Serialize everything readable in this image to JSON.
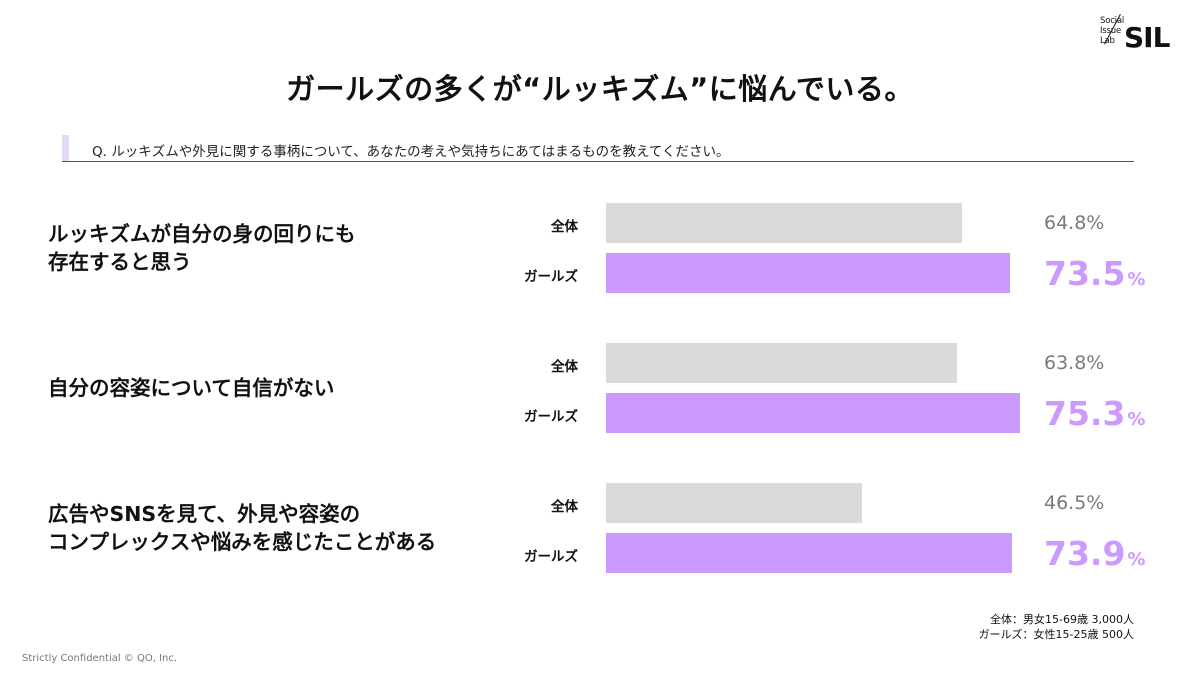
{
  "brand": {
    "line1": "Social",
    "line2": "Issue",
    "line3": "Lab",
    "mark": "SIL"
  },
  "title": "ガールズの多くが“ルッキズム”に悩んでいる。",
  "question": "Q. ルッキズムや外見に関する事柄について、あなたの考えや気持ちにあてはまるものを教えてください。",
  "colors": {
    "all_bar": "#dadada",
    "girls_bar": "#cc99ff",
    "all_text": "#7a7a7a",
    "accent": "#cc99ff"
  },
  "chart_data": {
    "type": "bar",
    "orientation": "horizontal",
    "series_labels": {
      "all": "全体",
      "girls": "ガールズ"
    },
    "unit": "%",
    "categories": [
      {
        "lines": [
          "ルッキズムが自分の身の回りにも",
          "存在すると思う"
        ],
        "all": 64.8,
        "girls": 73.5,
        "all_label": "64.8%",
        "girls_label": "73.5"
      },
      {
        "lines": [
          "自分の容姿について自信がない"
        ],
        "all": 63.8,
        "girls": 75.3,
        "all_label": "63.8%",
        "girls_label": "75.3"
      },
      {
        "lines": [
          "広告やSNSを見て、外見や容姿の",
          "コンプレックスや悩みを感じたことがある"
        ],
        "all": 46.5,
        "girls": 73.9,
        "all_label": "46.5%",
        "girls_label": "73.9"
      }
    ],
    "xlim": [
      0,
      100
    ],
    "grid": false
  },
  "notes": {
    "line1": "全体：男女15-69歳 3,000人",
    "line2": "ガールズ：女性15-25歳 500人"
  },
  "footer": "Strictly Confidential  © QO, Inc."
}
